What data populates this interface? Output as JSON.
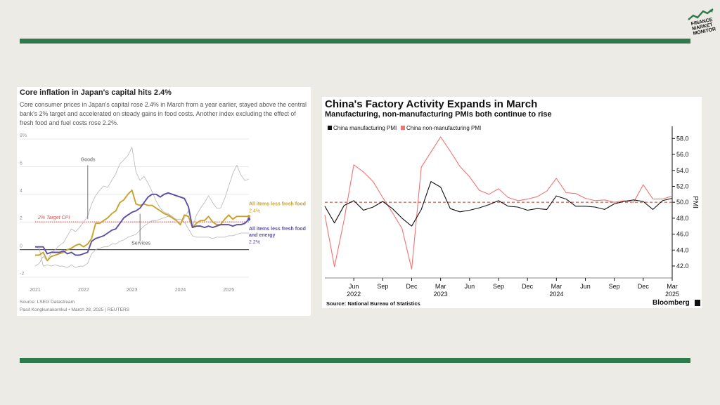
{
  "colors": {
    "accent_green": "#2f7a4a",
    "background": "#ecebe6",
    "japan_fresh_food": "#c9a22b",
    "japan_energy": "#5b4fa8",
    "japan_goods_services": "#b5b5b5",
    "target_line": "#d9534f",
    "china_manufacturing": "#111111",
    "china_non_manufacturing": "#f07470"
  },
  "logo": {
    "icon": "finance-market-monitor-logo",
    "text_lines": [
      "FINANCE",
      "MARKET",
      "MONITOR"
    ]
  },
  "japan_chart": {
    "title": "Core inflation in Japan's capital hits 2.4%",
    "description": "Core consumer prices in Japan's capital rose 2.4% in March from a year earlier, stayed above the central bank's 2% target and accelerated on steady gains in food costs. Another index excluding the effect of fresh food and fuel costs rose 2.2%.",
    "source": "Source: LSEG Datastream",
    "credit": "Pasit Kongkunakornkul • March 28, 2025 | REUTERS"
  },
  "china_chart": {
    "title": "China's Factory Activity Expands in March",
    "subtitle": "Manufacturing, non-manufacturing PMIs both continue to rise",
    "source": "Source:  National Bureau of Statistics",
    "brand": "Bloomberg"
  },
  "chart_data": [
    {
      "type": "line",
      "x_start": "2021-01",
      "x_end": "2025-03",
      "x_ticks": [
        "2021",
        "2022",
        "2023",
        "2024",
        "2025"
      ],
      "ylim": [
        -2,
        8
      ],
      "y_ticks": [
        -2,
        0,
        2,
        4,
        6,
        8
      ],
      "y_tick_labels": [
        "-2",
        "0",
        "2",
        "4",
        "6",
        "8%"
      ],
      "grid": true,
      "reference_line": {
        "value": 2,
        "label": "2% Target CPI"
      },
      "annotations": [
        {
          "text": "Goods",
          "series": "Goods"
        },
        {
          "text": "Services",
          "series": "Services"
        }
      ],
      "series": [
        {
          "name": "All items less fresh food",
          "end_label": "2.4%",
          "values": [
            -0.4,
            -0.4,
            -0.2,
            -0.8,
            -0.5,
            -0.4,
            -0.3,
            -0.2,
            0.0,
            0.1,
            0.3,
            0.4,
            0.2,
            0.4,
            0.8,
            1.9,
            1.9,
            2.1,
            2.3,
            2.6,
            2.8,
            3.4,
            3.6,
            4.0,
            4.3,
            3.3,
            3.2,
            3.3,
            3.2,
            3.2,
            3.0,
            2.8,
            2.6,
            2.5,
            2.3,
            2.1,
            1.8,
            2.5,
            2.4,
            1.6,
            1.9,
            2.1,
            2.1,
            2.4,
            2.0,
            1.8,
            1.8,
            2.2,
            2.5,
            2.2,
            2.4,
            2.4,
            2.4,
            2.4
          ]
        },
        {
          "name": "All items less fresh food and energy",
          "end_label": "2.2%",
          "values": [
            0.2,
            0.2,
            0.2,
            -0.3,
            -0.2,
            -0.2,
            -0.2,
            -0.1,
            -0.3,
            -0.2,
            -0.4,
            -0.4,
            -0.3,
            -0.2,
            0.6,
            0.8,
            0.9,
            1.0,
            1.2,
            1.4,
            1.5,
            1.9,
            2.3,
            2.5,
            2.7,
            2.8,
            3.0,
            3.4,
            3.8,
            4.0,
            4.0,
            3.8,
            4.0,
            4.1,
            4.0,
            3.9,
            3.8,
            3.7,
            3.1,
            1.6,
            1.7,
            1.7,
            1.6,
            1.7,
            1.6,
            1.7,
            1.8,
            1.8,
            1.8,
            1.7,
            1.8,
            1.8,
            1.9,
            2.2
          ]
        },
        {
          "name": "Goods",
          "values": [
            -1.2,
            -1.0,
            -0.5,
            -0.8,
            -0.2,
            0.0,
            0.3,
            0.5,
            1.0,
            1.5,
            1.3,
            1.6,
            2.0,
            2.4,
            3.3,
            3.9,
            4.3,
            4.6,
            4.5,
            5.0,
            5.5,
            6.2,
            6.5,
            6.8,
            7.4,
            5.6,
            5.0,
            5.3,
            4.8,
            4.2,
            3.5,
            3.0,
            2.7,
            2.6,
            2.4,
            2.1,
            1.8,
            2.3,
            2.8,
            1.6,
            2.5,
            3.0,
            3.4,
            3.9,
            3.4,
            3.0,
            3.0,
            3.7,
            4.6,
            5.5,
            6.1,
            5.4,
            5.0,
            5.1
          ]
        },
        {
          "name": "Services",
          "values": [
            0.2,
            0.1,
            -1.2,
            -1.1,
            -1.2,
            -1.1,
            -1.2,
            -1.2,
            -1.3,
            -1.1,
            -1.3,
            -1.2,
            -1.2,
            -1.0,
            -0.3,
            0.0,
            0.1,
            0.2,
            0.2,
            0.4,
            0.4,
            0.6,
            0.7,
            0.9,
            1.0,
            1.1,
            1.4,
            1.7,
            1.9,
            2.1,
            2.1,
            2.2,
            2.3,
            2.4,
            2.3,
            2.2,
            2.2,
            2.0,
            1.5,
            1.0,
            0.9,
            0.9,
            0.9,
            0.9,
            0.8,
            0.9,
            0.9,
            0.9,
            1.0,
            1.0,
            1.1,
            1.2,
            1.2,
            1.2
          ]
        }
      ]
    },
    {
      "type": "line",
      "x_start": "2022-03",
      "x_end": "2025-03",
      "x_tick_labels": [
        "Jun",
        "Sep",
        "Dec",
        "Mar",
        "Jun",
        "Sep",
        "Dec",
        "Mar",
        "Jun",
        "Sep",
        "Dec",
        "Mar"
      ],
      "x_year_labels": [
        "2022",
        "2023",
        "2024",
        "2025"
      ],
      "ylim": [
        40.5,
        59
      ],
      "y_ticks": [
        42,
        44,
        46,
        48,
        50,
        52,
        54,
        56,
        58
      ],
      "y_tick_labels": [
        "42.0",
        "44.0",
        "46.0",
        "48.0",
        "50.0",
        "52.0",
        "54.0",
        "56.0",
        "58.0"
      ],
      "ylabel": "PMI",
      "reference_line": {
        "value": 50
      },
      "legend": "top-left",
      "grid": false,
      "series": [
        {
          "name": "China manufacturing PMI",
          "values": [
            49.5,
            47.4,
            49.6,
            50.2,
            49.0,
            49.4,
            50.1,
            49.2,
            48.0,
            47.0,
            49.1,
            52.6,
            51.9,
            49.2,
            48.8,
            49.0,
            49.3,
            49.7,
            50.2,
            49.5,
            49.4,
            49.0,
            49.2,
            49.1,
            50.8,
            50.4,
            49.5,
            49.5,
            49.4,
            49.1,
            49.8,
            50.1,
            50.3,
            50.1,
            49.1,
            50.2,
            50.5
          ]
        },
        {
          "name": "China non-manufacturing PMI",
          "values": [
            48.4,
            41.9,
            47.8,
            54.7,
            53.8,
            52.6,
            50.6,
            48.7,
            46.7,
            41.6,
            54.4,
            56.3,
            58.2,
            56.4,
            54.5,
            53.2,
            51.5,
            51.0,
            51.7,
            50.6,
            50.2,
            50.4,
            50.7,
            51.4,
            53.0,
            51.2,
            51.1,
            50.5,
            50.2,
            50.3,
            50.0,
            50.2,
            50.0,
            52.2,
            50.4,
            50.4,
            50.8
          ]
        }
      ]
    }
  ]
}
